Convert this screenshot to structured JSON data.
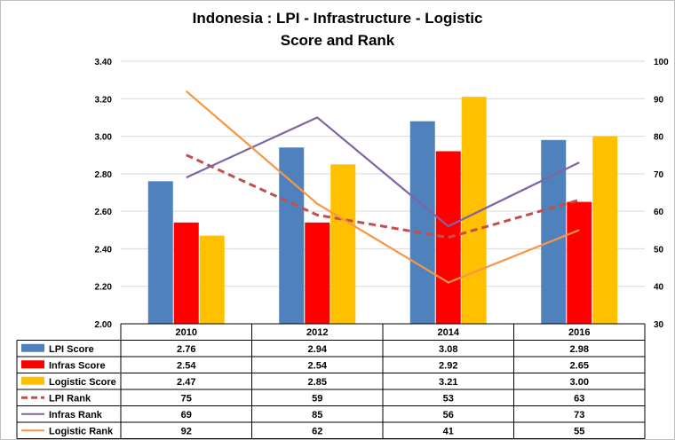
{
  "title_line1": "Indonesia : LPI - Infrastructure  - Logistic",
  "title_line2": "Score and Rank",
  "chart_data": {
    "type": "bar",
    "categories": [
      "2010",
      "2012",
      "2014",
      "2016"
    ],
    "left_axis": {
      "ticks": [
        "3.40",
        "3.20",
        "3.00",
        "2.80",
        "2.60",
        "2.40",
        "2.20",
        "2.00"
      ],
      "ylim": [
        2.0,
        3.4
      ]
    },
    "right_axis": {
      "ticks": [
        "100",
        "90",
        "80",
        "70",
        "60",
        "50",
        "40",
        "30"
      ],
      "ylim": [
        30,
        100
      ]
    },
    "grid": true,
    "bar_series": [
      {
        "name": "LPI Score",
        "color": "#4f81bd",
        "values": [
          2.76,
          2.94,
          3.08,
          2.98
        ],
        "labels": [
          "2.76",
          "2.94",
          "3.08",
          "2.98"
        ]
      },
      {
        "name": "Infras Score",
        "color": "#ff0000",
        "values": [
          2.54,
          2.54,
          2.92,
          2.65
        ],
        "labels": [
          "2.54",
          "2.54",
          "2.92",
          "2.65"
        ]
      },
      {
        "name": "Logistic Score",
        "color": "#ffc000",
        "values": [
          2.47,
          2.85,
          3.21,
          3.0
        ],
        "labels": [
          "2.47",
          "2.85",
          "3.21",
          "3.00"
        ]
      }
    ],
    "line_series": [
      {
        "name": "LPI Rank",
        "color": "#c0504d",
        "dashed": true,
        "values": [
          75,
          59,
          53,
          63
        ],
        "labels": [
          "75",
          "59",
          "53",
          "63"
        ]
      },
      {
        "name": "Infras Rank",
        "color": "#8064a2",
        "dashed": false,
        "values": [
          69,
          85,
          56,
          73
        ],
        "labels": [
          "69",
          "85",
          "56",
          "73"
        ]
      },
      {
        "name": "Logistic Rank",
        "color": "#f79646",
        "dashed": false,
        "values": [
          92,
          62,
          41,
          55
        ],
        "labels": [
          "92",
          "62",
          "41",
          "55"
        ]
      }
    ]
  }
}
